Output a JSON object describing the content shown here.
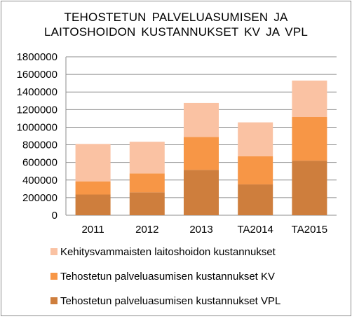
{
  "chart_data": {
    "type": "bar",
    "stacked": true,
    "title_lines": [
      "TEHOSTETUN  PALVELUASUMISEN  JA",
      "LAITOSHOIDON  KUSTANNUKSET  KV JA VPL"
    ],
    "categories": [
      "2011",
      "2012",
      "2013",
      "TA2014",
      "TA2015"
    ],
    "series": [
      {
        "name": "Tehostetun palveluasumisen kustannukset VPL",
        "color": "#ce7e3d",
        "values": [
          235000,
          260000,
          515000,
          350000,
          620000
        ]
      },
      {
        "name": "Tehostetun palveluasumisen kustannukset KV",
        "color": "#f79646",
        "values": [
          150000,
          215000,
          375000,
          320000,
          495000
        ]
      },
      {
        "name": "Kehitysvammaisten laitoshoidon kustannukset",
        "color": "#fac2a3",
        "values": [
          425000,
          360000,
          385000,
          385000,
          415000
        ]
      }
    ],
    "legend_order": [
      2,
      1,
      0
    ],
    "y_ticks": [
      "0",
      "200000",
      "400000",
      "600000",
      "800000",
      "1000000",
      "1200000",
      "1400000",
      "1600000",
      "1800000"
    ],
    "ylim": [
      0,
      1800000
    ],
    "grid": true,
    "legend_position": "bottom"
  }
}
